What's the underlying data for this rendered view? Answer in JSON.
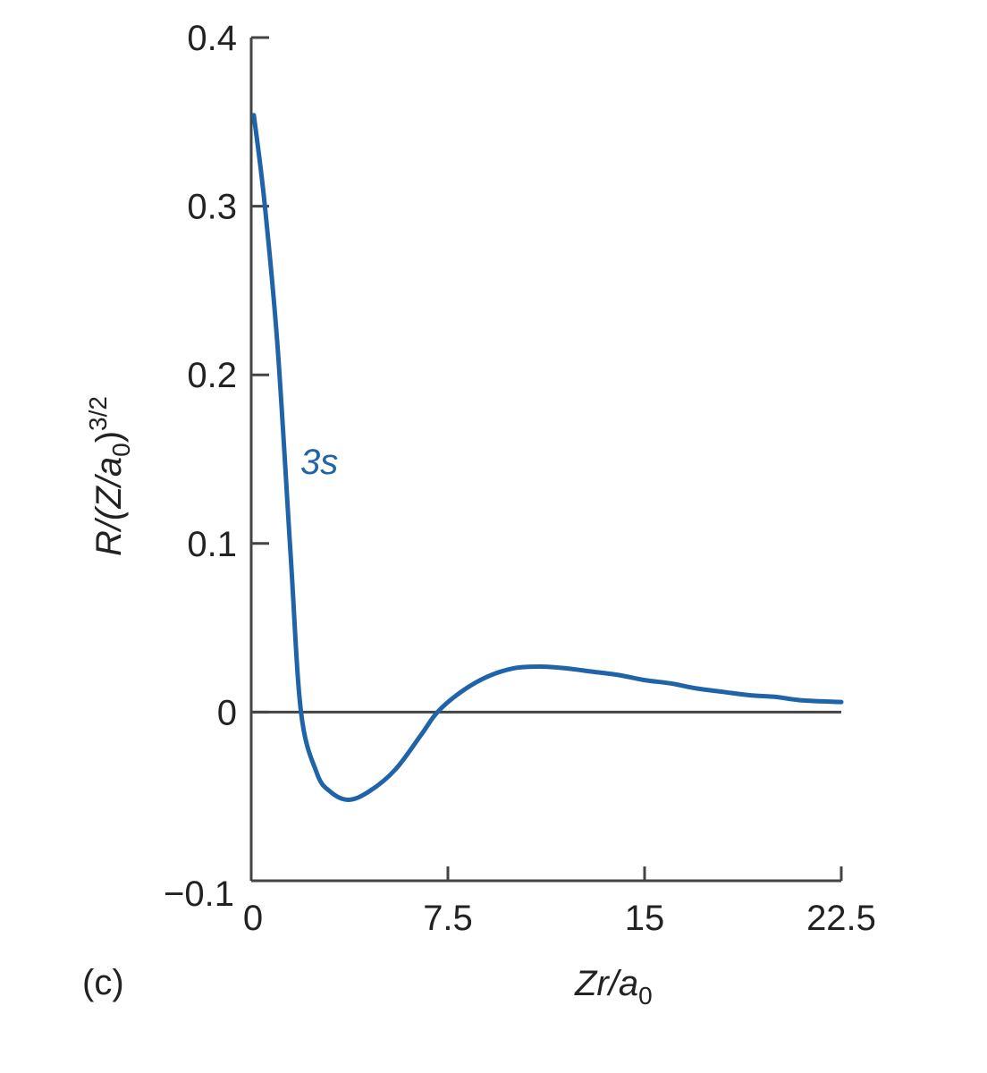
{
  "chart_data": {
    "type": "line",
    "title": "",
    "panel_label": "(c)",
    "xlabel": "Zr/a0",
    "xlabel_parts": {
      "main": "Zr/a",
      "sub": "0"
    },
    "ylabel": "R/(Z/a0)^3/2",
    "ylabel_parts": {
      "pre": "R/(Z/a",
      "sub": "0",
      "post": ")",
      "sup": "3/2"
    },
    "xlim": [
      0,
      22.5
    ],
    "ylim": [
      -0.1,
      0.4
    ],
    "x_ticks": [
      0,
      7.5,
      15,
      22.5
    ],
    "x_tick_labels": [
      "0",
      "7.5",
      "15",
      "22.5"
    ],
    "y_ticks": [
      -0.1,
      0,
      0.1,
      0.2,
      0.3,
      0.4
    ],
    "y_tick_labels": [
      "−0.1",
      "0",
      "0.1",
      "0.2",
      "0.3",
      "0.4"
    ],
    "grid": false,
    "legend": null,
    "series": [
      {
        "name": "3s",
        "color": "#1f63a8",
        "label_position": {
          "x": 2.0,
          "y": 0.15
        },
        "x": [
          0.1,
          0.5,
          1.0,
          1.5,
          1.9,
          2.5,
          3.0,
          3.7,
          4.5,
          5.5,
          6.5,
          7.1,
          8.0,
          9.0,
          10.0,
          11.0,
          12.0,
          13.0,
          14.0,
          15.0,
          16.0,
          17.0,
          18.0,
          19.0,
          20.0,
          21.0,
          22.5
        ],
        "values": [
          0.354,
          0.303,
          0.218,
          0.094,
          0.0,
          -0.036,
          -0.047,
          -0.052,
          -0.047,
          -0.034,
          -0.013,
          0.0,
          0.012,
          0.021,
          0.026,
          0.027,
          0.026,
          0.024,
          0.022,
          0.019,
          0.017,
          0.014,
          0.012,
          0.01,
          0.009,
          0.007,
          0.006
        ]
      }
    ],
    "annotations": [
      "3s"
    ],
    "zero_line": true
  },
  "labels": {
    "series_label": "3s",
    "panel": "(c)"
  }
}
